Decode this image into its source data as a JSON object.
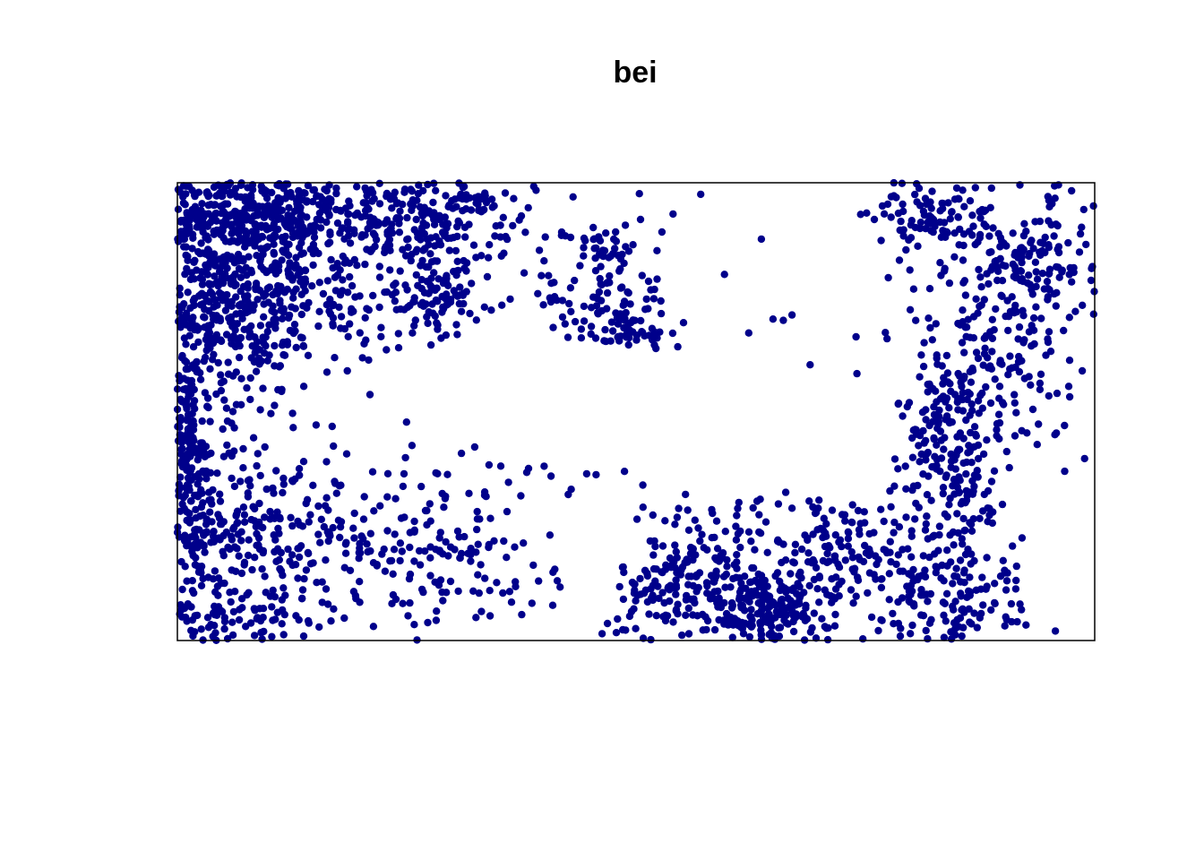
{
  "chart_data": {
    "type": "scatter",
    "title": "bei",
    "xlabel": "",
    "ylabel": "",
    "xlim": [
      0,
      1000
    ],
    "ylim": [
      0,
      500
    ],
    "grid": false,
    "point_color": "#00008B",
    "frame_color": "#000000",
    "clusters": [
      {
        "cx": 40,
        "cy": 400,
        "sx": 45,
        "sy": 80,
        "n": 380
      },
      {
        "cx": 110,
        "cy": 380,
        "sx": 60,
        "sy": 55,
        "n": 260
      },
      {
        "cx": 60,
        "cy": 470,
        "sx": 55,
        "sy": 25,
        "n": 170
      },
      {
        "cx": 150,
        "cy": 470,
        "sx": 50,
        "sy": 25,
        "n": 120
      },
      {
        "cx": 290,
        "cy": 470,
        "sx": 45,
        "sy": 30,
        "n": 170
      },
      {
        "cx": 285,
        "cy": 380,
        "sx": 30,
        "sy": 20,
        "n": 80
      },
      {
        "cx": 230,
        "cy": 420,
        "sx": 40,
        "sy": 35,
        "n": 70
      },
      {
        "cx": 10,
        "cy": 220,
        "sx": 12,
        "sy": 60,
        "n": 140
      },
      {
        "cx": 40,
        "cy": 110,
        "sx": 40,
        "sy": 60,
        "n": 180
      },
      {
        "cx": 140,
        "cy": 110,
        "sx": 45,
        "sy": 40,
        "n": 110
      },
      {
        "cx": 300,
        "cy": 80,
        "sx": 55,
        "sy": 45,
        "n": 120
      },
      {
        "cx": 60,
        "cy": 20,
        "sx": 60,
        "sy": 15,
        "n": 60
      },
      {
        "cx": 460,
        "cy": 400,
        "sx": 30,
        "sy": 40,
        "n": 100
      },
      {
        "cx": 495,
        "cy": 330,
        "sx": 25,
        "sy": 25,
        "n": 50
      },
      {
        "cx": 560,
        "cy": 60,
        "sx": 60,
        "sy": 35,
        "n": 230
      },
      {
        "cx": 650,
        "cy": 30,
        "sx": 30,
        "sy": 20,
        "n": 140
      },
      {
        "cx": 720,
        "cy": 100,
        "sx": 40,
        "sy": 40,
        "n": 130
      },
      {
        "cx": 840,
        "cy": 210,
        "sx": 30,
        "sy": 50,
        "n": 170
      },
      {
        "cx": 820,
        "cy": 470,
        "sx": 30,
        "sy": 25,
        "n": 90
      },
      {
        "cx": 930,
        "cy": 410,
        "sx": 50,
        "sy": 45,
        "n": 190
      },
      {
        "cx": 890,
        "cy": 300,
        "sx": 45,
        "sy": 40,
        "n": 110
      },
      {
        "cx": 830,
        "cy": 90,
        "sx": 40,
        "sy": 50,
        "n": 110
      },
      {
        "cx": 860,
        "cy": 40,
        "sx": 40,
        "sy": 25,
        "n": 70
      },
      {
        "cx": 500,
        "cy": 200,
        "sx": 230,
        "sy": 120,
        "n": 150
      }
    ],
    "voids": [
      {
        "cx": 400,
        "cy": 270,
        "rx": 170,
        "ry": 60
      },
      {
        "cx": 620,
        "cy": 230,
        "rx": 170,
        "ry": 70
      },
      {
        "cx": 700,
        "cy": 420,
        "rx": 60,
        "ry": 60
      },
      {
        "cx": 450,
        "cy": 95,
        "rx": 35,
        "ry": 75
      },
      {
        "cx": 985,
        "cy": 80,
        "rx": 70,
        "ry": 70
      }
    ]
  }
}
